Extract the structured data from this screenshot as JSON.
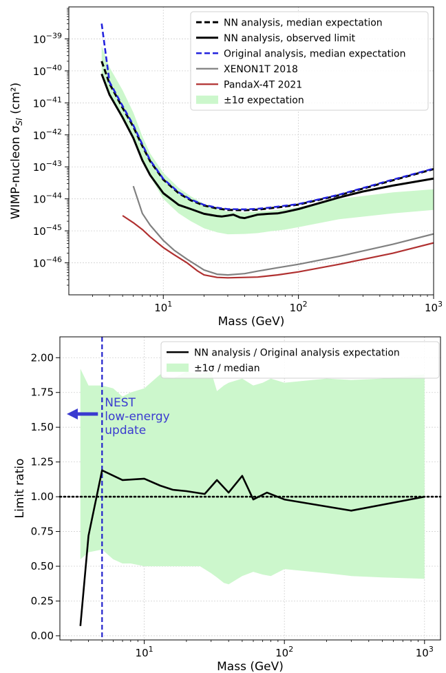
{
  "chart_data": [
    {
      "type": "line",
      "xlabel": "Mass (GeV)",
      "ylabel": "WIMP-nucleon σ",
      "ylabel_sub": "SI",
      "ylabel_unit": "(cm²)",
      "x_scale": "log",
      "y_scale": "log",
      "xlim": [
        2,
        1000
      ],
      "ylim": [
        1e-47,
        1e-38
      ],
      "x_ticks": [
        {
          "v": 10,
          "base": "10",
          "exp": "1"
        },
        {
          "v": 100,
          "base": "10",
          "exp": "2"
        },
        {
          "v": 1000,
          "base": "10",
          "exp": "3"
        }
      ],
      "y_ticks": [
        {
          "v": 1e-39,
          "base": "10",
          "exp": "−39"
        },
        {
          "v": 1e-40,
          "base": "10",
          "exp": "−40"
        },
        {
          "v": 1e-41,
          "base": "10",
          "exp": "−41"
        },
        {
          "v": 1e-42,
          "base": "10",
          "exp": "−42"
        },
        {
          "v": 1e-43,
          "base": "10",
          "exp": "−43"
        },
        {
          "v": 1e-44,
          "base": "10",
          "exp": "−44"
        },
        {
          "v": 1e-45,
          "base": "10",
          "exp": "−45"
        },
        {
          "v": 1e-46,
          "base": "10",
          "exp": "−46"
        }
      ],
      "grid": true,
      "legend_position": "top-right",
      "band": {
        "name": "±1σ expectation",
        "color": "#ccf7cc",
        "x": [
          3.5,
          4,
          5,
          6,
          7,
          8,
          10,
          13,
          16,
          20,
          25,
          30,
          40,
          50,
          60,
          80,
          100,
          200,
          500,
          1000
        ],
        "lower": [
          8e-41,
          1.8e-41,
          3.5e-42,
          8e-43,
          1.6e-43,
          5e-44,
          1e-44,
          3.5e-45,
          2e-45,
          1.2e-45,
          9e-46,
          7.8e-46,
          8e-46,
          8.5e-46,
          9.5e-46,
          1.1e-45,
          1.3e-45,
          2.3e-45,
          3.5e-45,
          4.5e-45
        ],
        "upper": [
          6e-40,
          1.3e-40,
          2.5e-41,
          5e-42,
          9e-43,
          2.6e-43,
          6.5e-44,
          2.2e-44,
          1.2e-44,
          7e-45,
          4.8e-45,
          4e-45,
          3.8e-45,
          4e-45,
          4.2e-45,
          4.8e-45,
          5.5e-45,
          1e-44,
          1.6e-44,
          2e-44
        ]
      },
      "series": [
        {
          "name": "NN analysis, median expectation",
          "color": "#000000",
          "style": "dashed",
          "width": 3,
          "x": [
            3.5,
            4,
            5,
            6,
            7,
            8,
            10,
            13,
            16,
            20,
            25,
            30,
            40,
            50,
            60,
            80,
            100,
            200,
            500,
            1000
          ],
          "y": [
            2e-40,
            4e-41,
            7e-42,
            1.8e-42,
            4.5e-43,
            1.5e-43,
            4e-44,
            1.5e-44,
            9e-45,
            6.2e-45,
            5e-45,
            4.5e-45,
            4.4e-45,
            4.6e-45,
            5e-45,
            5.8e-45,
            6.6e-45,
            1.3e-44,
            3.8e-44,
            8.5e-44
          ]
        },
        {
          "name": "NN analysis, observed limit",
          "color": "#000000",
          "style": "solid",
          "width": 3,
          "x": [
            3.5,
            4,
            5,
            6,
            7,
            8,
            10,
            13,
            16,
            20,
            25,
            27,
            30,
            33,
            37,
            40,
            50,
            60,
            70,
            80,
            100,
            200,
            300,
            500,
            1000
          ],
          "y": [
            8e-41,
            1.8e-41,
            3.5e-42,
            8e-43,
            1.6e-43,
            5.5e-44,
            1.5e-44,
            6.5e-45,
            4.8e-45,
            3.4e-45,
            2.9e-45,
            2.8e-45,
            3e-45,
            3.2e-45,
            2.6e-45,
            2.5e-45,
            3.2e-45,
            3.4e-45,
            3.5e-45,
            3.9e-45,
            4.8e-45,
            1.1e-44,
            1.7e-44,
            2.6e-44,
            4.3e-44
          ]
        },
        {
          "name": "Original analysis, median expectation",
          "color": "#2222dd",
          "style": "dashed",
          "width": 2.6,
          "x": [
            3.5,
            4,
            5,
            6,
            7,
            8,
            10,
            13,
            16,
            20,
            25,
            30,
            40,
            50,
            60,
            80,
            100,
            200,
            500,
            1000
          ],
          "y": [
            3e-39,
            4.5e-41,
            8e-42,
            2e-42,
            5e-43,
            1.6e-43,
            4.2e-44,
            1.6e-44,
            9.5e-45,
            6.5e-45,
            5.3e-45,
            4.8e-45,
            4.7e-45,
            4.9e-45,
            5.3e-45,
            6.1e-45,
            6.9e-45,
            1.35e-44,
            4e-44,
            8.8e-44
          ]
        },
        {
          "name": "XENON1T 2018",
          "color": "#808080",
          "style": "solid",
          "width": 2.2,
          "x": [
            6,
            7,
            8,
            10,
            12,
            15,
            20,
            25,
            30,
            40,
            50,
            70,
            100,
            200,
            500,
            1000
          ],
          "y": [
            2.5e-44,
            3.5e-45,
            1.5e-45,
            5e-46,
            2.5e-46,
            1.3e-46,
            6e-47,
            4.4e-47,
            4.2e-47,
            4.6e-47,
            5.5e-47,
            7e-47,
            9e-47,
            1.6e-46,
            3.8e-46,
            8e-46
          ]
        },
        {
          "name": "PandaX-4T 2021",
          "color": "#b03030",
          "style": "solid",
          "width": 2.2,
          "x": [
            5,
            6,
            7,
            8,
            10,
            12,
            15,
            18,
            20,
            25,
            30,
            40,
            50,
            70,
            100,
            200,
            500,
            1000
          ],
          "y": [
            3e-45,
            1.8e-45,
            1.1e-45,
            6.5e-46,
            3e-46,
            1.8e-46,
            1e-46,
            5.5e-47,
            4.2e-47,
            3.5e-47,
            3.4e-47,
            3.5e-47,
            3.6e-47,
            4.2e-47,
            5.2e-47,
            9e-47,
            2e-46,
            4.2e-46
          ]
        }
      ]
    },
    {
      "type": "line",
      "xlabel": "Mass (GeV)",
      "ylabel": "Limit ratio",
      "x_scale": "log",
      "y_scale": "linear",
      "xlim": [
        2.5,
        1300
      ],
      "ylim": [
        -0.03,
        2.15
      ],
      "x_ticks": [
        {
          "v": 10,
          "base": "10",
          "exp": "1"
        },
        {
          "v": 100,
          "base": "10",
          "exp": "2"
        },
        {
          "v": 1000,
          "base": "10",
          "exp": "3"
        }
      ],
      "y_ticks": [
        {
          "v": 0.0,
          "label": "0.00"
        },
        {
          "v": 0.25,
          "label": "0.25"
        },
        {
          "v": 0.5,
          "label": "0.50"
        },
        {
          "v": 0.75,
          "label": "0.75"
        },
        {
          "v": 1.0,
          "label": "1.00"
        },
        {
          "v": 1.25,
          "label": "1.25"
        },
        {
          "v": 1.5,
          "label": "1.50"
        },
        {
          "v": 1.75,
          "label": "1.75"
        },
        {
          "v": 2.0,
          "label": "2.00"
        }
      ],
      "grid": true,
      "legend_position": "top-right",
      "band": {
        "name": "±1σ / median",
        "color": "#ccf7cc",
        "x": [
          3.5,
          4,
          5,
          6,
          7,
          8,
          10,
          13,
          16,
          20,
          25,
          30,
          33,
          37,
          40,
          50,
          60,
          70,
          80,
          100,
          200,
          300,
          500,
          1000
        ],
        "lower": [
          0.55,
          0.6,
          0.62,
          0.55,
          0.52,
          0.52,
          0.5,
          0.5,
          0.5,
          0.5,
          0.5,
          0.45,
          0.42,
          0.38,
          0.37,
          0.43,
          0.46,
          0.44,
          0.43,
          0.48,
          0.45,
          0.43,
          0.42,
          0.41
        ],
        "upper": [
          1.92,
          1.8,
          1.8,
          1.78,
          1.72,
          1.75,
          1.78,
          1.88,
          1.85,
          1.9,
          1.88,
          1.9,
          1.76,
          1.8,
          1.82,
          1.85,
          1.8,
          1.82,
          1.85,
          1.82,
          1.85,
          1.84,
          1.85,
          1.88
        ]
      },
      "series": [
        {
          "name": "NN analysis / Original analysis expectation",
          "color": "#000000",
          "style": "solid",
          "width": 2.6,
          "x": [
            3.5,
            4,
            5,
            7,
            10,
            13,
            16,
            20,
            27,
            33,
            40,
            50,
            60,
            75,
            100,
            300,
            1000
          ],
          "y": [
            0.07,
            0.72,
            1.19,
            1.12,
            1.13,
            1.08,
            1.05,
            1.04,
            1.02,
            1.12,
            1.03,
            1.15,
            0.98,
            1.03,
            0.98,
            0.9,
            1.0
          ]
        }
      ],
      "reference_line": {
        "y": 1.0,
        "color": "#000000",
        "style": "dotted"
      },
      "vertical_line": {
        "x": 5,
        "color": "#2222cc",
        "style": "dashed"
      },
      "annotation": {
        "lines": [
          "NEST",
          "low-energy",
          "update"
        ],
        "color": "#3a3ad0",
        "arrow_direction": "left"
      }
    }
  ]
}
